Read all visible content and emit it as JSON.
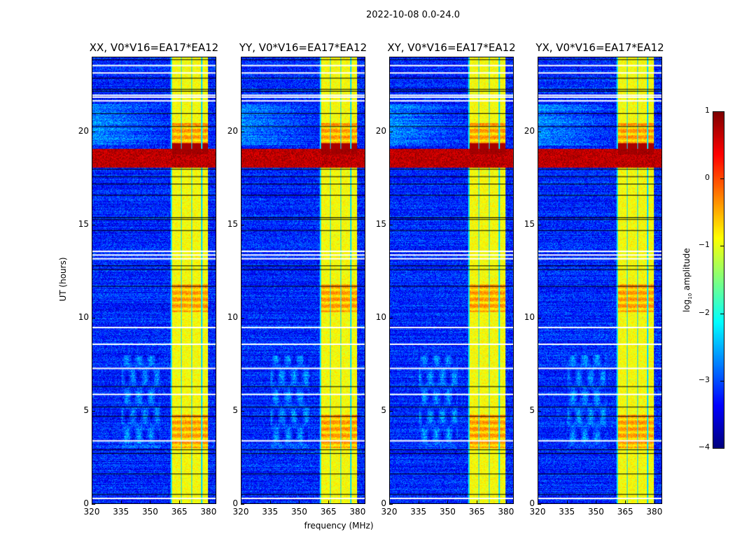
{
  "suptitle": "2022-10-08 0.0-24.0",
  "chart_data": {
    "type": "heatmap",
    "panels": [
      {
        "title": "XX, V0*V16=EA17*EA12"
      },
      {
        "title": "YY, V0*V16=EA17*EA12"
      },
      {
        "title": "XY, V0*V16=EA17*EA12"
      },
      {
        "title": "YX, V0*V16=EA17*EA12"
      }
    ],
    "xlabel": "frequency (MHz)",
    "ylabel": "UT (hours)",
    "xlim": [
      320,
      384
    ],
    "ylim": [
      0,
      24
    ],
    "xticks": [
      "320",
      "335",
      "350",
      "365",
      "380"
    ],
    "xtick_values": [
      320,
      335,
      350,
      365,
      380
    ],
    "yticks": [
      "0",
      "5",
      "10",
      "15",
      "20"
    ],
    "ytick_values": [
      0,
      5,
      10,
      15,
      20
    ],
    "bright_band_mhz": [
      360.5,
      380
    ],
    "rfi_band_ut": [
      18.1,
      19.1
    ],
    "colorbar": {
      "label_main": "log",
      "label_sub": "10",
      "label_rest": " amplitude",
      "range": [
        -4,
        1
      ],
      "ticks": [
        "1",
        "0",
        "−1",
        "−2",
        "−3",
        "−4"
      ],
      "tick_values": [
        1,
        0,
        -1,
        -2,
        -3,
        -4
      ],
      "colormap": "jet"
    }
  }
}
